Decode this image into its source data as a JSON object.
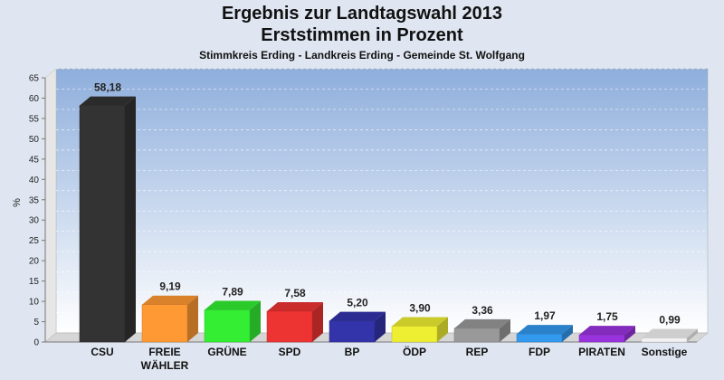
{
  "chart_data": {
    "type": "bar",
    "title": "Ergebnis zur Landtagswahl 2013",
    "title_line2": "Erststimmen in Prozent",
    "subtitle": "Stimmkreis Erding - Landkreis Erding - Gemeinde St. Wolfgang",
    "ylabel": "%",
    "ylim": [
      0,
      65
    ],
    "yticks": [
      0,
      5,
      10,
      15,
      20,
      25,
      30,
      35,
      40,
      45,
      50,
      55,
      60,
      65
    ],
    "categories": [
      "CSU",
      "FREIE WÄHLER",
      "GRÜNE",
      "SPD",
      "BP",
      "ÖDP",
      "REP",
      "FDP",
      "PIRATEN",
      "Sonstige"
    ],
    "category_lines": [
      [
        "CSU"
      ],
      [
        "FREIE",
        "WÄHLER"
      ],
      [
        "GRÜNE"
      ],
      [
        "SPD"
      ],
      [
        "BP"
      ],
      [
        "ÖDP"
      ],
      [
        "REP"
      ],
      [
        "FDP"
      ],
      [
        "PIRATEN"
      ],
      [
        "Sonstige"
      ]
    ],
    "values": [
      58.18,
      9.19,
      7.89,
      7.58,
      5.2,
      3.9,
      3.36,
      1.97,
      1.75,
      0.99
    ],
    "value_labels": [
      "58,18",
      "9,19",
      "7,89",
      "7,58",
      "5,20",
      "3,90",
      "3,36",
      "1,97",
      "1,75",
      "0,99"
    ],
    "colors": [
      "#333333",
      "#ff9933",
      "#33ee33",
      "#ee3333",
      "#3333aa",
      "#eeee33",
      "#999999",
      "#3399ee",
      "#9933dd",
      "#f2f2f2"
    ],
    "grid": true,
    "legend": "none"
  }
}
